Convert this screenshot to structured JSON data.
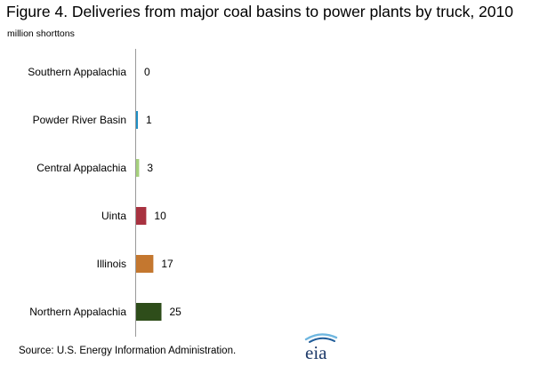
{
  "figure": {
    "title": "Figure 4.  Deliveries from major coal basins to power plants by truck, 2010",
    "unit_label": "million shorttons",
    "source": "Source: U.S. Energy  Information Administration.",
    "logo_text": "eia"
  },
  "chart_data": {
    "type": "bar",
    "orientation": "horizontal",
    "title": "Figure 4.  Deliveries from major coal basins to power plants by truck, 2010",
    "ylabel": "million shorttons",
    "xlabel": "",
    "categories": [
      "Southern Appalachia",
      "Powder River Basin",
      "Central Appalachia",
      "Uinta",
      "Illinois",
      "Northern Appalachia"
    ],
    "values": [
      0,
      1,
      3,
      10,
      17,
      25
    ],
    "colors": [
      "#4a7fb5",
      "#1f8fc4",
      "#a6d07d",
      "#a83240",
      "#c4772f",
      "#2e4d1a"
    ],
    "xlim": [
      0,
      25
    ],
    "grid": false,
    "data_labels": true,
    "legend": "none"
  }
}
